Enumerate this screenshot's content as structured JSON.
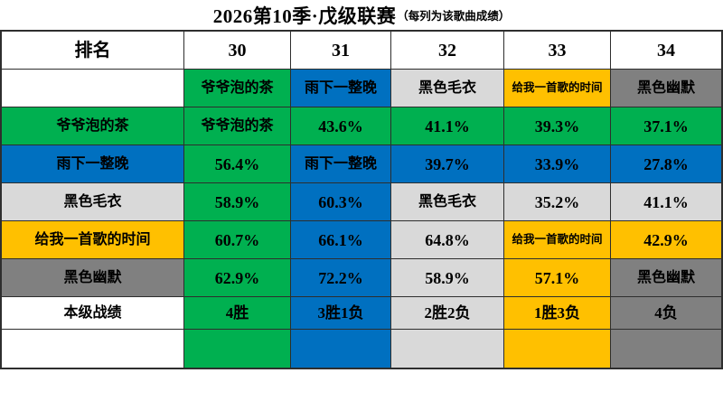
{
  "title": {
    "main": "2026第10季·戊级联赛",
    "note": "（每列为该歌曲成绩）"
  },
  "colors": {
    "green": "#00B050",
    "blue": "#0070C0",
    "light_gray": "#D9D9D9",
    "yellow": "#FFC000",
    "dark_gray": "#808080",
    "white": "#FFFFFF"
  },
  "songs": [
    {
      "name": "爷爷泡的茶",
      "rank": "30",
      "color": "#00B050",
      "record": "4胜"
    },
    {
      "name": "雨下一整晚",
      "rank": "31",
      "color": "#0070C0",
      "record": "3胜1负"
    },
    {
      "name": "黑色毛衣",
      "rank": "32",
      "color": "#D9D9D9",
      "record": "2胜2负"
    },
    {
      "name": "给我一首歌的时间",
      "rank": "33",
      "color": "#FFC000",
      "record": "1胜3负"
    },
    {
      "name": "黑色幽默",
      "rank": "34",
      "color": "#808080",
      "record": "4负"
    }
  ],
  "matrix": {
    "corner": "排名",
    "col_headers": [
      "30",
      "31",
      "32",
      "33",
      "34"
    ],
    "rows": [
      {
        "label": "",
        "label_bg": "#FFFFFF",
        "cells": [
          {
            "t": "爷爷泡的茶",
            "bg": "#00B050"
          },
          {
            "t": "雨下一整晚",
            "bg": "#0070C0"
          },
          {
            "t": "黑色毛衣",
            "bg": "#D9D9D9"
          },
          {
            "t": "给我一首歌的时间",
            "bg": "#FFC000"
          },
          {
            "t": "黑色幽默",
            "bg": "#808080"
          }
        ]
      },
      {
        "label": "爷爷泡的茶",
        "label_bg": "#00B050",
        "cells": [
          {
            "t": "爷爷泡的茶",
            "bg": "#00B050"
          },
          {
            "t": "43.6%",
            "bg": "#00B050"
          },
          {
            "t": "41.1%",
            "bg": "#00B050"
          },
          {
            "t": "39.3%",
            "bg": "#00B050"
          },
          {
            "t": "37.1%",
            "bg": "#00B050"
          }
        ]
      },
      {
        "label": "雨下一整晚",
        "label_bg": "#0070C0",
        "cells": [
          {
            "t": "56.4%",
            "bg": "#00B050"
          },
          {
            "t": "雨下一整晚",
            "bg": "#0070C0"
          },
          {
            "t": "39.7%",
            "bg": "#0070C0"
          },
          {
            "t": "33.9%",
            "bg": "#0070C0"
          },
          {
            "t": "27.8%",
            "bg": "#0070C0"
          }
        ]
      },
      {
        "label": "黑色毛衣",
        "label_bg": "#D9D9D9",
        "cells": [
          {
            "t": "58.9%",
            "bg": "#00B050"
          },
          {
            "t": "60.3%",
            "bg": "#0070C0"
          },
          {
            "t": "黑色毛衣",
            "bg": "#D9D9D9"
          },
          {
            "t": "35.2%",
            "bg": "#D9D9D9"
          },
          {
            "t": "41.1%",
            "bg": "#D9D9D9"
          }
        ]
      },
      {
        "label": "给我一首歌的时间",
        "label_bg": "#FFC000",
        "cells": [
          {
            "t": "60.7%",
            "bg": "#00B050"
          },
          {
            "t": "66.1%",
            "bg": "#0070C0"
          },
          {
            "t": "64.8%",
            "bg": "#D9D9D9"
          },
          {
            "t": "给我一首歌的时间",
            "bg": "#FFC000"
          },
          {
            "t": "42.9%",
            "bg": "#FFC000"
          }
        ]
      },
      {
        "label": "黑色幽默",
        "label_bg": "#808080",
        "cells": [
          {
            "t": "62.9%",
            "bg": "#00B050"
          },
          {
            "t": "72.2%",
            "bg": "#0070C0"
          },
          {
            "t": "58.9%",
            "bg": "#D9D9D9"
          },
          {
            "t": "57.1%",
            "bg": "#FFC000"
          },
          {
            "t": "黑色幽默",
            "bg": "#808080"
          }
        ]
      },
      {
        "label": "本级战绩",
        "label_bg": "#FFFFFF",
        "cells": [
          {
            "t": "4胜",
            "bg": "#00B050"
          },
          {
            "t": "3胜1负",
            "bg": "#0070C0"
          },
          {
            "t": "2胜2负",
            "bg": "#D9D9D9"
          },
          {
            "t": "1胜3负",
            "bg": "#FFC000"
          },
          {
            "t": "4负",
            "bg": "#808080"
          }
        ]
      },
      {
        "label": "",
        "label_bg": "#FFFFFF",
        "cells": [
          {
            "t": "",
            "bg": "#00B050"
          },
          {
            "t": "",
            "bg": "#0070C0"
          },
          {
            "t": "",
            "bg": "#D9D9D9"
          },
          {
            "t": "",
            "bg": "#FFC000"
          },
          {
            "t": "",
            "bg": "#808080"
          }
        ]
      }
    ]
  },
  "chart_data": {
    "type": "table",
    "title": "2026第10季·戊级联赛（每列为该歌曲成绩）",
    "columns": [
      "排名",
      "30",
      "31",
      "32",
      "33",
      "34"
    ],
    "column_songs": [
      "爷爷泡的茶",
      "雨下一整晚",
      "黑色毛衣",
      "给我一首歌的时间",
      "黑色幽默"
    ],
    "rows": [
      [
        "爷爷泡的茶",
        "爷爷泡的茶",
        "43.6%",
        "41.1%",
        "39.3%",
        "37.1%"
      ],
      [
        "雨下一整晚",
        "56.4%",
        "雨下一整晚",
        "39.7%",
        "33.9%",
        "27.8%"
      ],
      [
        "黑色毛衣",
        "58.9%",
        "60.3%",
        "黑色毛衣",
        "35.2%",
        "41.1%"
      ],
      [
        "给我一首歌的时间",
        "60.7%",
        "66.1%",
        "64.8%",
        "给我一首歌的时间",
        "42.9%"
      ],
      [
        "黑色幽默",
        "62.9%",
        "72.2%",
        "58.9%",
        "57.1%",
        "黑色幽默"
      ],
      [
        "本级战绩",
        "4胜",
        "3胜1负",
        "2胜2负",
        "1胜3负",
        "4负"
      ]
    ],
    "cell_color_rule": "cell background = color of winning song; column colors: 30=#00B050 green, 31=#0070C0 blue, 32=#D9D9D9 light gray, 33=#FFC000 yellow, 34=#808080 gray"
  }
}
